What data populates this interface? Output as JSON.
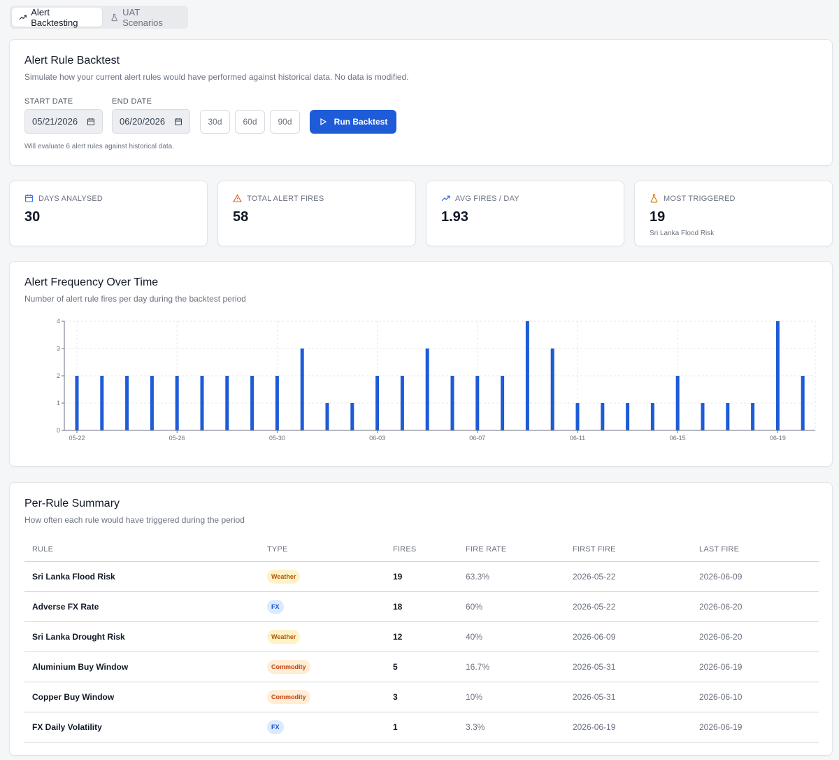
{
  "tabs": [
    {
      "label": "Alert Backtesting",
      "icon": "trending-up-icon",
      "active": true
    },
    {
      "label": "UAT Scenarios",
      "icon": "flask-icon",
      "active": false
    }
  ],
  "backtest": {
    "title": "Alert Rule Backtest",
    "subtitle": "Simulate how your current alert rules would have performed against historical data. No data is modified.",
    "start_label": "START DATE",
    "start_value": "05/21/2026",
    "end_label": "END DATE",
    "end_value": "06/20/2026",
    "presets": [
      "30d",
      "60d",
      "90d"
    ],
    "run_label": "Run Backtest",
    "hint": "Will evaluate 6 alert rules against historical data."
  },
  "stats": [
    {
      "label": "DAYS ANALYSED",
      "value": "30",
      "sub": "",
      "icon": "calendar-icon",
      "color": "#2563eb"
    },
    {
      "label": "TOTAL ALERT FIRES",
      "value": "58",
      "sub": "",
      "icon": "warning-icon",
      "color": "#ea580c"
    },
    {
      "label": "AVG FIRES / DAY",
      "value": "1.93",
      "sub": "",
      "icon": "trending-up-icon",
      "color": "#2563eb"
    },
    {
      "label": "MOST TRIGGERED",
      "value": "19",
      "sub": "Sri Lanka Flood Risk",
      "icon": "flask-icon",
      "color": "#d97706"
    }
  ],
  "chart": {
    "title": "Alert Frequency Over Time",
    "subtitle": "Number of alert rule fires per day during the backtest period"
  },
  "chart_data": {
    "type": "bar",
    "categories": [
      "05-22",
      "05-23",
      "05-24",
      "05-25",
      "05-26",
      "05-27",
      "05-28",
      "05-29",
      "05-30",
      "05-31",
      "06-01",
      "06-02",
      "06-03",
      "06-04",
      "06-05",
      "06-06",
      "06-07",
      "06-08",
      "06-09",
      "06-10",
      "06-11",
      "06-12",
      "06-13",
      "06-14",
      "06-15",
      "06-16",
      "06-17",
      "06-18",
      "06-19",
      "06-20"
    ],
    "values": [
      2,
      2,
      2,
      2,
      2,
      2,
      2,
      2,
      2,
      3,
      1,
      1,
      2,
      2,
      3,
      2,
      2,
      2,
      4,
      3,
      1,
      1,
      1,
      1,
      2,
      1,
      1,
      1,
      4,
      2
    ],
    "tick_labels": [
      "05-22",
      "05-26",
      "05-30",
      "06-03",
      "06-07",
      "06-11",
      "06-15",
      "06-19"
    ],
    "y_ticks": [
      "0",
      "1",
      "2",
      "3",
      "4"
    ],
    "ylim": [
      0,
      4
    ],
    "grid": true,
    "bar_color": "#1d5bd8"
  },
  "table": {
    "title": "Per-Rule Summary",
    "subtitle": "How often each rule would have triggered during the period",
    "columns": [
      "RULE",
      "TYPE",
      "FIRES",
      "FIRE RATE",
      "FIRST FIRE",
      "LAST FIRE"
    ],
    "rows": [
      {
        "rule": "Sri Lanka Flood Risk",
        "type": "Weather",
        "fires": "19",
        "rate": "63.3%",
        "first": "2026-05-22",
        "last": "2026-06-09"
      },
      {
        "rule": "Adverse FX Rate",
        "type": "FX",
        "fires": "18",
        "rate": "60%",
        "first": "2026-05-22",
        "last": "2026-06-20"
      },
      {
        "rule": "Sri Lanka Drought Risk",
        "type": "Weather",
        "fires": "12",
        "rate": "40%",
        "first": "2026-06-09",
        "last": "2026-06-20"
      },
      {
        "rule": "Aluminium Buy Window",
        "type": "Commodity",
        "fires": "5",
        "rate": "16.7%",
        "first": "2026-05-31",
        "last": "2026-06-19"
      },
      {
        "rule": "Copper Buy Window",
        "type": "Commodity",
        "fires": "3",
        "rate": "10%",
        "first": "2026-05-31",
        "last": "2026-06-10"
      },
      {
        "rule": "FX Daily Volatility",
        "type": "FX",
        "fires": "1",
        "rate": "3.3%",
        "first": "2026-06-19",
        "last": "2026-06-19"
      }
    ],
    "badge_colors": {
      "Weather": {
        "bg": "#fef3c7",
        "fg": "#b45309"
      },
      "FX": {
        "bg": "#dbeafe",
        "fg": "#1d4ed8"
      },
      "Commodity": {
        "bg": "#ffedd5",
        "fg": "#c2410c"
      }
    }
  }
}
